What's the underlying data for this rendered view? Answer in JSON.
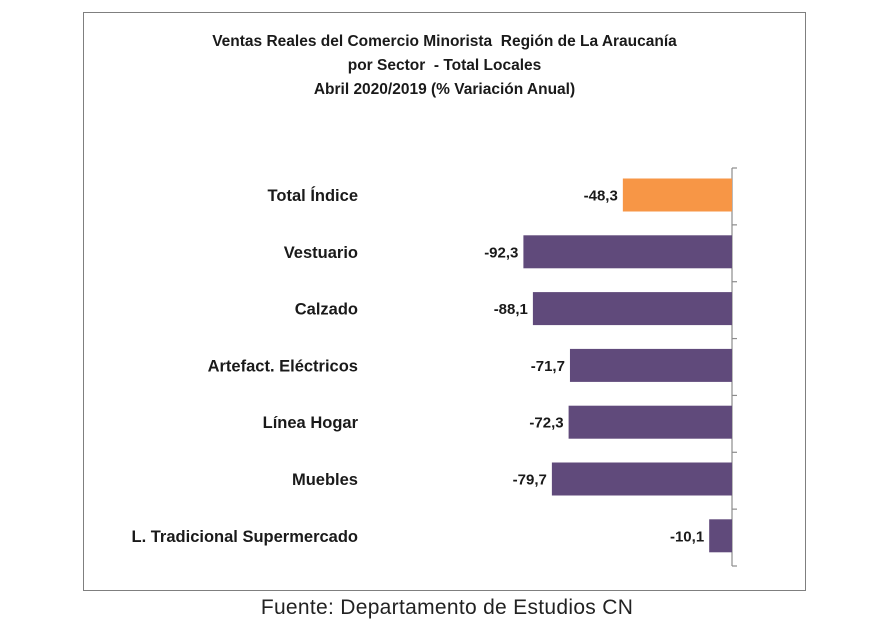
{
  "chart_data": {
    "type": "bar",
    "orientation": "horizontal",
    "title_lines": [
      "Ventas Reales del Comercio Minorista  Región de La Araucanía",
      "por Sector  - Total Locales",
      "Abril 2020/2019 (% Variación Anual)"
    ],
    "categories": [
      "Total Índice",
      "Vestuario",
      "Calzado",
      "Artefact. Eléctricos",
      "Línea Hogar",
      "Muebles",
      "L. Tradicional Supermercado"
    ],
    "values": [
      -48.3,
      -92.3,
      -88.1,
      -71.7,
      -72.3,
      -79.7,
      -10.1
    ],
    "value_labels": [
      "-48,3",
      "-92,3",
      "-88,1",
      "-71,7",
      "-72,3",
      "-79,7",
      "-10,1"
    ],
    "bar_colors": [
      "#F79646",
      "#604A7B",
      "#604A7B",
      "#604A7B",
      "#604A7B",
      "#604A7B",
      "#604A7B"
    ],
    "xlim": [
      -100,
      0
    ],
    "grid": false,
    "legend": "none"
  },
  "source": "Fuente: Departamento de Estudios CN"
}
